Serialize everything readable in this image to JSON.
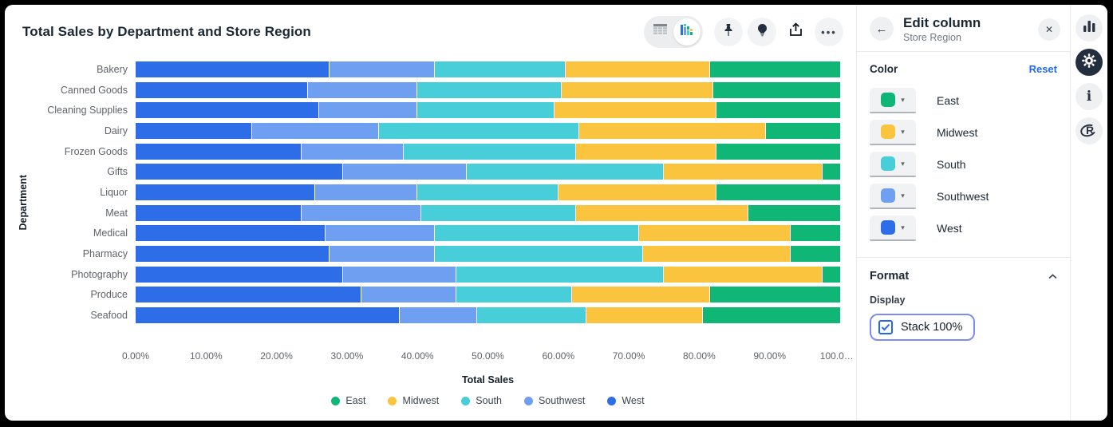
{
  "chart": {
    "title": "Total Sales by Department and Store Region",
    "y_axis_label": "Department",
    "x_axis_label": "Total Sales"
  },
  "chart_data": {
    "type": "bar",
    "orientation": "horizontal",
    "stacked": true,
    "stack_100_percent": true,
    "categories": [
      "Bakery",
      "Canned Goods",
      "Cleaning Supplies",
      "Dairy",
      "Frozen Goods",
      "Gifts",
      "Liquor",
      "Meat",
      "Medical",
      "Pharmacy",
      "Photography",
      "Produce",
      "Seafood"
    ],
    "series": [
      {
        "name": "West",
        "color": "#2d6ee8",
        "values": [
          27.5,
          24.5,
          26.0,
          16.5,
          23.5,
          29.5,
          25.5,
          23.5,
          27.0,
          27.5,
          29.5,
          32.0,
          37.5
        ]
      },
      {
        "name": "Southwest",
        "color": "#6f9ff0",
        "values": [
          15.0,
          15.5,
          14.0,
          18.0,
          14.5,
          17.5,
          14.5,
          17.0,
          15.5,
          15.0,
          16.0,
          13.5,
          11.0
        ]
      },
      {
        "name": "South",
        "color": "#47ced8",
        "values": [
          18.5,
          20.5,
          19.5,
          28.5,
          24.5,
          28.0,
          20.0,
          22.0,
          29.0,
          29.5,
          29.5,
          16.5,
          15.5
        ]
      },
      {
        "name": "Midwest",
        "color": "#fac43e",
        "values": [
          20.5,
          21.5,
          23.0,
          26.5,
          20.0,
          22.5,
          22.5,
          24.5,
          21.5,
          21.0,
          22.5,
          19.5,
          16.5
        ]
      },
      {
        "name": "East",
        "color": "#10b675",
        "values": [
          18.5,
          18.0,
          17.5,
          10.5,
          17.5,
          2.5,
          17.5,
          13.0,
          7.0,
          7.0,
          2.5,
          18.5,
          19.5
        ]
      }
    ],
    "x_ticks": [
      "0.00%",
      "10.00%",
      "20.00%",
      "30.00%",
      "40.00%",
      "50.00%",
      "60.00%",
      "70.00%",
      "80.00%",
      "90.00%",
      "100.0…"
    ],
    "xlim": [
      0,
      100
    ],
    "legend": [
      {
        "name": "East",
        "color": "#10b675"
      },
      {
        "name": "Midwest",
        "color": "#fac43e"
      },
      {
        "name": "South",
        "color": "#47ced8"
      },
      {
        "name": "Southwest",
        "color": "#6f9ff0"
      },
      {
        "name": "West",
        "color": "#2d6ee8"
      }
    ],
    "legend_position": "bottom"
  },
  "toolbar": {
    "toggle": [
      "table-view",
      "chart-view"
    ],
    "active_toggle": "chart-view",
    "buttons": [
      "pin",
      "lightbulb",
      "share",
      "more"
    ],
    "more_glyph": "•••"
  },
  "panel": {
    "back_glyph": "←",
    "title": "Edit column",
    "subtitle": "Store Region",
    "close_glyph": "✕",
    "color_section": {
      "label": "Color",
      "reset_label": "Reset",
      "chevron_glyph": "▾",
      "rows": [
        {
          "name": "East",
          "color": "#10b675"
        },
        {
          "name": "Midwest",
          "color": "#fac43e"
        },
        {
          "name": "South",
          "color": "#47ced8"
        },
        {
          "name": "Southwest",
          "color": "#6f9ff0"
        },
        {
          "name": "West",
          "color": "#2d6ee8"
        }
      ]
    },
    "format_section": {
      "label": "Format",
      "display_label": "Display",
      "checkbox_label": "Stack 100%",
      "checked": true
    }
  },
  "side_rail": {
    "items": [
      "chart",
      "settings",
      "info",
      "r-logo"
    ]
  },
  "colors": {
    "accent_blue": "#2469eb",
    "focus_ring": "#7d8cf0",
    "checkbox_blue": "#2569e8",
    "rail_dark": "#232e3f",
    "title_text": "#1b2733",
    "muted_text": "#5f6368"
  }
}
